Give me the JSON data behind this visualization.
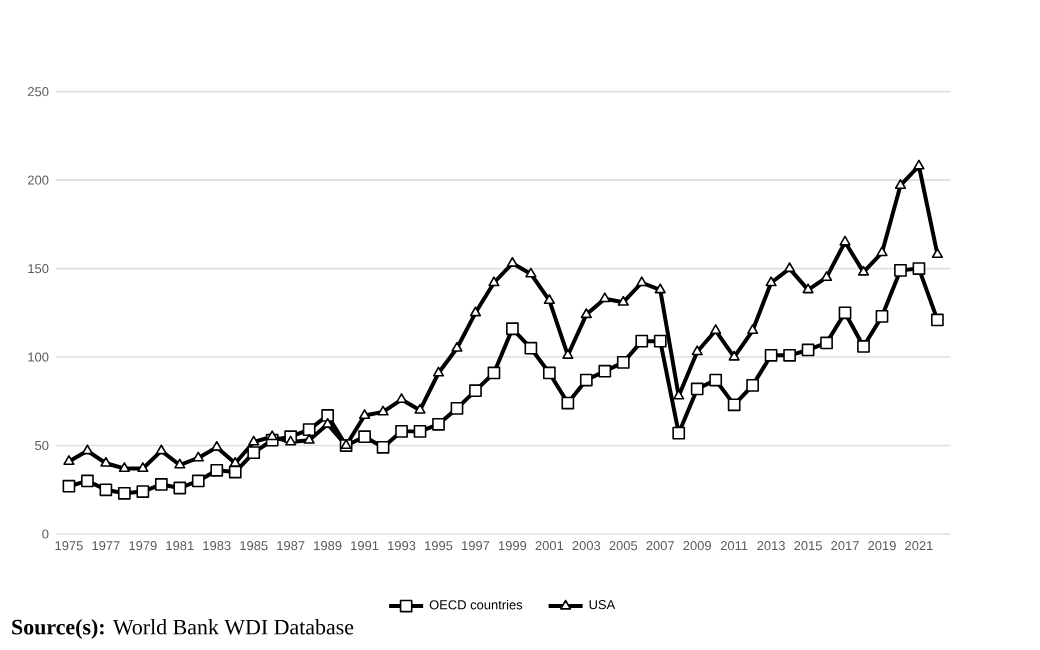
{
  "chart_data": {
    "type": "line",
    "categories": [
      "1975",
      null,
      "1977",
      null,
      "1979",
      null,
      "1981",
      null,
      "1983",
      null,
      "1985",
      null,
      "1987",
      null,
      "1989",
      null,
      "1991",
      null,
      "1993",
      null,
      "1995",
      null,
      "1997",
      null,
      "1999",
      null,
      "2001",
      null,
      "2003",
      null,
      "2005",
      null,
      "2007",
      null,
      "2009",
      null,
      "2011",
      null,
      "2013",
      null,
      "2015",
      null,
      "2017",
      null,
      "2019",
      null,
      "2021",
      null
    ],
    "series": [
      {
        "name": "OECD countries",
        "color": "#000000",
        "marker": "square",
        "values": [
          27,
          30,
          25,
          23,
          24,
          28,
          26,
          30,
          36,
          35,
          46,
          53,
          55,
          59,
          67,
          50,
          55,
          49,
          58,
          58,
          62,
          71,
          81,
          91,
          116,
          105,
          91,
          74,
          87,
          92,
          97,
          109,
          109,
          57,
          82,
          87,
          73,
          84,
          101,
          101,
          104,
          108,
          125,
          106,
          123,
          149,
          150,
          121
        ]
      },
      {
        "name": "USA",
        "color": "#000000",
        "marker": "triangle",
        "values": [
          41,
          47,
          40,
          37,
          37,
          47,
          39,
          43,
          49,
          40,
          52,
          55,
          52,
          53,
          62,
          50,
          67,
          69,
          76,
          70,
          91,
          105,
          125,
          142,
          153,
          147,
          132,
          101,
          124,
          133,
          131,
          142,
          138,
          78,
          103,
          115,
          100,
          115,
          142,
          150,
          138,
          145,
          165,
          148,
          159,
          197,
          208,
          158
        ]
      }
    ],
    "ylim": [
      0,
      250
    ],
    "yticks": [
      0,
      50,
      100,
      150,
      200,
      250
    ],
    "grid": "y",
    "legend": "bottom",
    "line_style": "solid",
    "annotations": [
      "**Source(s):** World Bank WDI Database"
    ]
  }
}
